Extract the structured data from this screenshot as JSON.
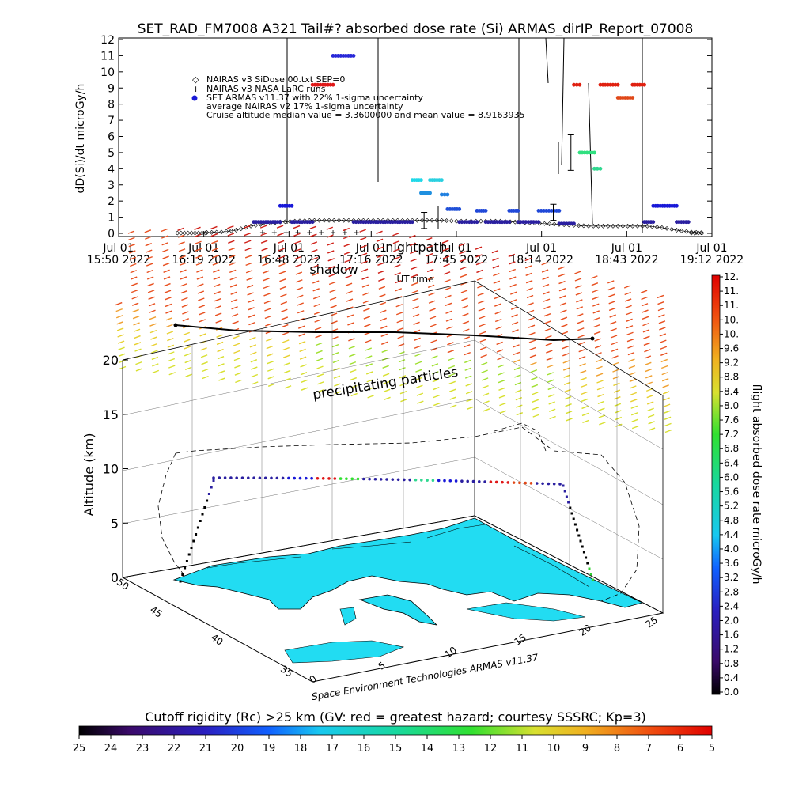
{
  "title": "SET_RAD_FM7008   A321 Tail#? absorbed dose rate (Si) ARMAS_dirIP_Report_07008",
  "chart_data": [
    {
      "type": "scatter",
      "ylabel": "dD(Si)/dt microGy/h",
      "xlabel": "UT time",
      "ylim": [
        0,
        12
      ],
      "yticks": [
        "0",
        "1",
        "2",
        "3",
        "4",
        "5",
        "6",
        "7",
        "8",
        "9",
        "10",
        "11",
        "12"
      ],
      "xticks": [
        {
          "l1": "Jul 01",
          "l2": "15:50 2022",
          "t": 0
        },
        {
          "l1": "Jul 01",
          "l2": "16:19 2022",
          "t": 29
        },
        {
          "l1": "Jul 01",
          "l2": "16:48 2022",
          "t": 58
        },
        {
          "l1": "Jul 01",
          "l2": "17:16 2022",
          "t": 86
        },
        {
          "l1": "Jul 01",
          "l2": "17:45 2022",
          "t": 115
        },
        {
          "l1": "Jul 01",
          "l2": "18:14 2022",
          "t": 144
        },
        {
          "l1": "Jul 01",
          "l2": "18:43 2022",
          "t": 173
        },
        {
          "l1": "Jul 01",
          "l2": "19:12 2022",
          "t": 202
        }
      ],
      "overlay_labels": {
        "shadow": "shadow",
        "nightpath": "nightpath"
      },
      "legend": [
        {
          "symbol": "diamond",
          "text": "NAIRAS v3 SiDose 00.txt SEP=0"
        },
        {
          "symbol": "plus",
          "text": "NAIRAS v3 NASA LaRC runs"
        },
        {
          "symbol": "dot",
          "text": "SET ARMAS v11.37 with 22% 1-sigma uncertainty"
        },
        {
          "symbol": "none",
          "text": "average NAIRAS v2 17% 1-sigma uncertainty"
        },
        {
          "symbol": "none",
          "text": "Cruise altitude median value = 3.3600000 and mean value = 8.9163935"
        }
      ],
      "series": [
        {
          "name": "SET ARMAS v11.37 with 22% 1-sigma uncertainty",
          "color": "#2828d0",
          "segments": [
            {
              "t0": 46,
              "t1": 55,
              "v": 0.7,
              "color": "#2a1fa0"
            },
            {
              "t0": 55,
              "t1": 59,
              "v": 1.7,
              "color": "#1818d8"
            },
            {
              "t0": 59,
              "t1": 66,
              "v": 0.7,
              "color": "#2a1fa0"
            },
            {
              "t0": 66,
              "t1": 73,
              "v": 9.2,
              "color": "#e01818"
            },
            {
              "t0": 73,
              "t1": 80,
              "v": 11.0,
              "color": "#2828d8"
            },
            {
              "t0": 80,
              "t1": 100,
              "v": 0.7,
              "color": "#2a1fa0"
            },
            {
              "t0": 100,
              "t1": 103,
              "v": 3.3,
              "color": "#20d8e8"
            },
            {
              "t0": 103,
              "t1": 106,
              "v": 2.5,
              "color": "#2090e0"
            },
            {
              "t0": 106,
              "t1": 110,
              "v": 3.3,
              "color": "#2ad0e0"
            },
            {
              "t0": 110,
              "t1": 112,
              "v": 2.4,
              "color": "#2080e0"
            },
            {
              "t0": 112,
              "t1": 116,
              "v": 1.5,
              "color": "#2050d8"
            },
            {
              "t0": 116,
              "t1": 122,
              "v": 0.7,
              "color": "#2a1fa0"
            },
            {
              "t0": 122,
              "t1": 125,
              "v": 1.4,
              "color": "#2048d8"
            },
            {
              "t0": 125,
              "t1": 133,
              "v": 0.7,
              "color": "#2a1fa0"
            },
            {
              "t0": 133,
              "t1": 136,
              "v": 1.4,
              "color": "#2048d8"
            },
            {
              "t0": 136,
              "t1": 143,
              "v": 0.7,
              "color": "#2a1fa0"
            },
            {
              "t0": 143,
              "t1": 150,
              "v": 1.4,
              "color": "#2048d8"
            },
            {
              "t0": 150,
              "t1": 155,
              "v": 0.6,
              "color": "#2a1fa0"
            },
            {
              "t0": 155,
              "t1": 157,
              "v": 9.2,
              "color": "#e02010"
            },
            {
              "t0": 157,
              "t1": 162,
              "v": 5.0,
              "color": "#30e080"
            },
            {
              "t0": 162,
              "t1": 164,
              "v": 4.0,
              "color": "#30d890"
            },
            {
              "t0": 164,
              "t1": 170,
              "v": 9.2,
              "color": "#e02010"
            },
            {
              "t0": 170,
              "t1": 175,
              "v": 8.4,
              "color": "#e04818"
            },
            {
              "t0": 175,
              "t1": 179,
              "v": 9.2,
              "color": "#e02010"
            },
            {
              "t0": 179,
              "t1": 182,
              "v": 0.7,
              "color": "#2a1fa0"
            },
            {
              "t0": 182,
              "t1": 190,
              "v": 1.7,
              "color": "#1818d8"
            },
            {
              "t0": 190,
              "t1": 194,
              "v": 0.7,
              "color": "#2a1fa0"
            }
          ]
        },
        {
          "name": "NAIRAS v3 SiDose 00.txt SEP=0",
          "color": "#000000",
          "points": [
            [
              30,
              0.05
            ],
            [
              35,
              0.08
            ],
            [
              40,
              0.2
            ],
            [
              45,
              0.45
            ],
            [
              50,
              0.6
            ],
            [
              55,
              0.7
            ],
            [
              60,
              0.75
            ],
            [
              65,
              0.8
            ],
            [
              70,
              0.8
            ],
            [
              75,
              0.8
            ],
            [
              80,
              0.8
            ],
            [
              85,
              0.8
            ],
            [
              90,
              0.8
            ],
            [
              95,
              0.8
            ],
            [
              100,
              0.8
            ],
            [
              105,
              0.8
            ],
            [
              110,
              0.8
            ],
            [
              115,
              0.75
            ],
            [
              120,
              0.75
            ],
            [
              125,
              0.75
            ],
            [
              130,
              0.75
            ],
            [
              135,
              0.7
            ],
            [
              140,
              0.65
            ],
            [
              145,
              0.6
            ],
            [
              150,
              0.55
            ],
            [
              155,
              0.5
            ],
            [
              160,
              0.45
            ],
            [
              165,
              0.45
            ],
            [
              170,
              0.45
            ],
            [
              175,
              0.45
            ],
            [
              180,
              0.45
            ],
            [
              185,
              0.35
            ],
            [
              190,
              0.2
            ],
            [
              195,
              0.08
            ],
            [
              200,
              0.02
            ]
          ]
        },
        {
          "name": "NAIRAS v3 NASA LaRC runs",
          "color": "#000000",
          "points": [
            [
              49,
              0.05
            ],
            [
              53,
              0.05
            ],
            [
              57,
              0.05
            ],
            [
              61,
              0.05
            ],
            [
              65,
              0.05
            ],
            [
              69,
              0.05
            ],
            [
              73,
              0.05
            ],
            [
              77,
              0.05
            ],
            [
              81,
              0.05
            ]
          ]
        }
      ]
    },
    {
      "type": "scatter",
      "subtype": "3d-trajectory",
      "zlabel": "Altitude (km)",
      "zticks": [
        "0",
        "5",
        "10",
        "15",
        "20"
      ],
      "lat_ticks": [
        "50",
        "45",
        "40",
        "35"
      ],
      "lon_ticks": [
        "0",
        "5",
        "10",
        "15",
        "20",
        "25"
      ],
      "annotation": "precipitating particles",
      "credit": "Space Environment Technologies ARMAS v11.37",
      "cruise_altitude_km": 9.3
    },
    {
      "type": "heatmap",
      "colorbar": "vertical",
      "label": "flight absorbed dose rate microGy/h",
      "ticks": [
        "0.0",
        "0.4",
        "0.8",
        "1.2",
        "1.6",
        "2.0",
        "2.4",
        "2.8",
        "3.2",
        "3.6",
        "4.0",
        "4.4",
        "4.8",
        "5.2",
        "5.6",
        "6.0",
        "6.4",
        "6.8",
        "7.2",
        "7.6",
        "8.0",
        "8.4",
        "8.8",
        "9.2",
        "9.6",
        "10.",
        "10.",
        "11.",
        "11.",
        "12."
      ]
    },
    {
      "type": "heatmap",
      "colorbar": "horizontal",
      "label": "Cutoff rigidity (Rc) >25 km (GV: red = greatest hazard; courtesy SSSRC; Kp=3)",
      "ticks": [
        "25",
        "24",
        "23",
        "22",
        "21",
        "20",
        "19",
        "18",
        "17",
        "16",
        "15",
        "14",
        "13",
        "12",
        "11",
        "10",
        "9",
        "8",
        "7",
        "6",
        "5"
      ]
    }
  ],
  "colors": {
    "ocean": "#ffffff",
    "land": "#22dcf2",
    "track_low": "#2a1fa0",
    "track_high": "#e01818"
  }
}
